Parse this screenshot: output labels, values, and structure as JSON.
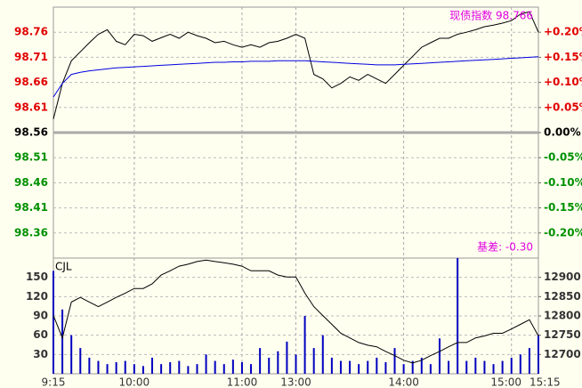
{
  "chart_data": [
    {
      "type": "line",
      "annotations": [
        "现债指数 98.766",
        "基差: -0.30"
      ],
      "annotation_color": "#e000e0",
      "x": [
        0,
        5,
        10,
        15,
        20,
        25,
        30,
        35,
        40,
        45,
        50,
        55,
        60,
        65,
        70,
        75,
        80,
        85,
        90,
        95,
        100,
        105,
        110,
        115,
        120,
        125,
        130,
        135,
        140,
        145,
        150,
        155,
        160,
        165,
        170,
        175,
        180,
        185,
        190,
        195,
        200,
        205,
        210,
        215,
        220,
        225,
        230,
        235,
        240,
        245,
        250,
        255,
        260,
        265,
        270
      ],
      "xlim": [
        0,
        270
      ],
      "series": [
        {
          "color": "#000000",
          "values": [
            98.587,
            98.658,
            98.703,
            98.721,
            98.739,
            98.756,
            98.765,
            98.742,
            98.735,
            98.756,
            98.753,
            98.742,
            98.749,
            98.756,
            98.748,
            98.76,
            98.753,
            98.748,
            98.739,
            98.742,
            98.735,
            98.73,
            98.735,
            98.73,
            98.739,
            98.742,
            98.748,
            98.756,
            98.748,
            98.676,
            98.667,
            98.649,
            98.658,
            98.671,
            98.664,
            98.676,
            98.667,
            98.658,
            98.676,
            98.694,
            98.712,
            98.73,
            98.739,
            98.748,
            98.748,
            98.756,
            98.76,
            98.765,
            98.771,
            98.774,
            98.778,
            98.783,
            98.796,
            98.801,
            98.76
          ]
        },
        {
          "color": "#0000e0",
          "values": [
            98.631,
            98.658,
            98.676,
            98.68,
            98.683,
            98.685,
            98.687,
            98.689,
            98.69,
            98.691,
            98.692,
            98.693,
            98.694,
            98.695,
            98.696,
            98.697,
            98.698,
            98.699,
            98.7,
            98.7,
            98.701,
            98.701,
            98.702,
            98.702,
            98.702,
            98.703,
            98.703,
            98.703,
            98.703,
            98.702,
            98.701,
            98.7,
            98.699,
            98.698,
            98.697,
            98.696,
            98.695,
            98.695,
            98.695,
            98.696,
            98.697,
            98.698,
            98.699,
            98.7,
            98.701,
            98.702,
            98.703,
            98.704,
            98.705,
            98.706,
            98.707,
            98.708,
            98.709,
            98.71,
            98.711
          ]
        }
      ],
      "ylim": [
        98.31,
        98.81
      ],
      "yticks": [
        98.76,
        98.71,
        98.66,
        98.61,
        98.56,
        98.51,
        98.46,
        98.41,
        98.36
      ],
      "y2lim": [
        -0.25,
        0.25
      ],
      "y2ticks": [
        {
          "value": 0.2,
          "label": "+0.20%"
        },
        {
          "value": 0.15,
          "label": "+0.15%"
        },
        {
          "value": 0.1,
          "label": "+0.10%"
        },
        {
          "value": 0.05,
          "label": "+0.05%"
        },
        {
          "value": 0,
          "label": "0.00%"
        },
        {
          "value": -0.05,
          "label": "-0.05%"
        },
        {
          "value": -0.1,
          "label": "-0.10%"
        },
        {
          "value": -0.15,
          "label": "-0.15%"
        },
        {
          "value": -0.2,
          "label": "-0.20%"
        }
      ],
      "up_color": "#e00000",
      "down_color": "#009000",
      "grid": true
    },
    {
      "type": "combo",
      "x": [
        0,
        5,
        10,
        15,
        20,
        25,
        30,
        35,
        40,
        45,
        50,
        55,
        60,
        65,
        70,
        75,
        80,
        85,
        90,
        95,
        100,
        105,
        110,
        115,
        120,
        125,
        130,
        135,
        140,
        145,
        150,
        155,
        160,
        165,
        170,
        175,
        180,
        185,
        190,
        195,
        200,
        205,
        210,
        215,
        220,
        225,
        230,
        235,
        240,
        245,
        250,
        255,
        260,
        265,
        270
      ],
      "xlim": [
        0,
        270
      ],
      "xticks": [
        {
          "value": 0,
          "label": "9:15"
        },
        {
          "value": 45,
          "label": "10:00"
        },
        {
          "value": 105,
          "label": "11:00"
        },
        {
          "value": 135,
          "label": "13:00"
        },
        {
          "value": 195,
          "label": "14:00"
        },
        {
          "value": 255,
          "label": "15:00"
        },
        {
          "value": 270,
          "label": "15:15"
        }
      ],
      "series": [
        {
          "name": "CJL",
          "type": "bar",
          "color": "#0000c0",
          "values": [
            160,
            100,
            60,
            40,
            25,
            20,
            15,
            18,
            20,
            15,
            12,
            25,
            15,
            18,
            20,
            12,
            15,
            30,
            20,
            15,
            22,
            18,
            15,
            40,
            25,
            35,
            50,
            30,
            90,
            40,
            60,
            25,
            20,
            20,
            15,
            20,
            25,
            18,
            40,
            15,
            20,
            25,
            15,
            55,
            20,
            180,
            20,
            25,
            20,
            15,
            20,
            25,
            30,
            40,
            60
          ]
        },
        {
          "type": "line",
          "axis": "y2",
          "color": "#000000",
          "values": [
            12801,
            12743,
            12836,
            12848,
            12836,
            12824,
            12836,
            12848,
            12859,
            12871,
            12871,
            12883,
            12906,
            12917,
            12929,
            12934,
            12941,
            12945,
            12941,
            12938,
            12934,
            12929,
            12917,
            12917,
            12917,
            12906,
            12901,
            12901,
            12859,
            12824,
            12801,
            12778,
            12755,
            12743,
            12731,
            12724,
            12720,
            12708,
            12697,
            12685,
            12678,
            12685,
            12697,
            12708,
            12720,
            12731,
            12731,
            12743,
            12748,
            12755,
            12755,
            12766,
            12778,
            12790,
            12748
          ]
        }
      ],
      "ylim": [
        0,
        180
      ],
      "yticks": [
        150,
        120,
        90,
        60,
        30
      ],
      "y2lim": [
        12650,
        12950
      ],
      "y2ticks": [
        12900,
        12850,
        12800,
        12750,
        12700
      ],
      "grid": true
    }
  ]
}
